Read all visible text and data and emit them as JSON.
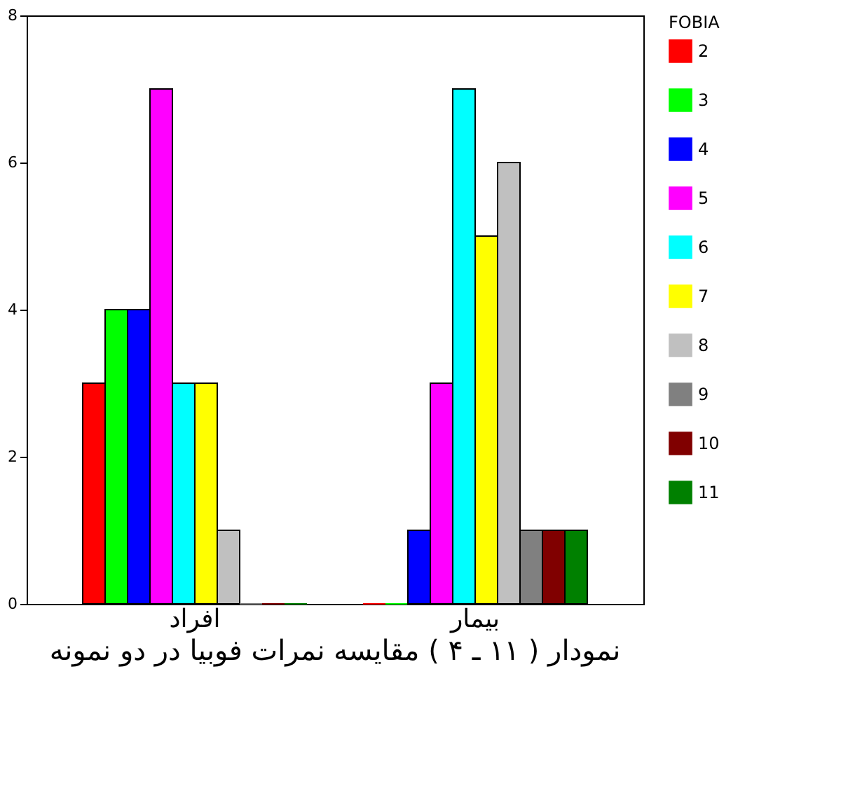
{
  "chart_data": {
    "type": "bar",
    "title": "نمودار ( ۱۱ ـ ۴ ) مقایسه نمرات فوبیا در دو نمونه",
    "categories": [
      "افراد",
      "بیمار"
    ],
    "legend_title": "FOBIA",
    "legend": "right",
    "grid": false,
    "ylim": [
      0,
      8
    ],
    "yticks": [
      0,
      2,
      4,
      6,
      8
    ],
    "series": [
      {
        "name": "2",
        "color": "#ff0000",
        "values": [
          3,
          0
        ]
      },
      {
        "name": "3",
        "color": "#00ff00",
        "values": [
          4,
          0
        ]
      },
      {
        "name": "4",
        "color": "#0000ff",
        "values": [
          4,
          1
        ]
      },
      {
        "name": "5",
        "color": "#ff00ff",
        "values": [
          7,
          3
        ]
      },
      {
        "name": "6",
        "color": "#00ffff",
        "values": [
          3,
          7
        ]
      },
      {
        "name": "7",
        "color": "#ffff00",
        "values": [
          3,
          5
        ]
      },
      {
        "name": "8",
        "color": "#c0c0c0",
        "values": [
          1,
          6
        ]
      },
      {
        "name": "9",
        "color": "#808080",
        "values": [
          0,
          1
        ]
      },
      {
        "name": "10",
        "color": "#800000",
        "values": [
          0,
          1
        ]
      },
      {
        "name": "11",
        "color": "#008000",
        "values": [
          0,
          1
        ]
      }
    ]
  }
}
